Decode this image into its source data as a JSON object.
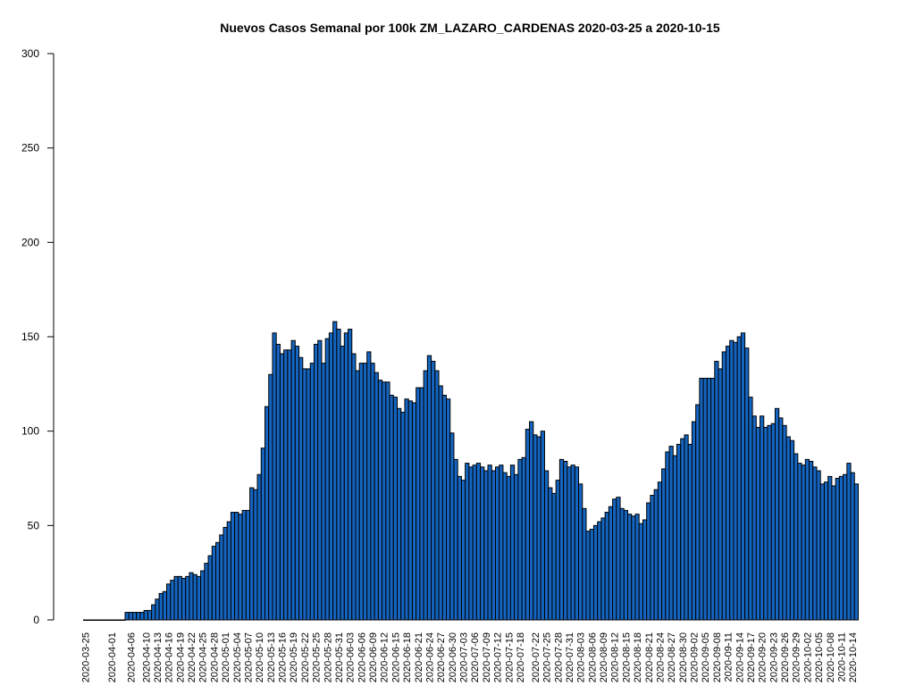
{
  "chart_data": {
    "type": "bar",
    "title": "Nuevos Casos Semanal por 100k ZM_LAZARO_CARDENAS 2020-03-25 a 2020-10-15",
    "xlabel": "",
    "ylabel": "",
    "ylim": [
      0,
      300
    ],
    "yticks": [
      0,
      50,
      100,
      150,
      200,
      250,
      300
    ],
    "grid": false,
    "bar_color": "#1565C0",
    "bar_edge_color": "#000000",
    "x_start": "2020-03-25",
    "x": [
      "2020-03-25",
      "2020-03-26",
      "2020-03-27",
      "2020-03-28",
      "2020-03-29",
      "2020-03-30",
      "2020-03-31",
      "2020-04-01",
      "2020-04-02",
      "2020-04-03",
      "2020-04-04",
      "2020-04-05",
      "2020-04-06",
      "2020-04-07",
      "2020-04-08",
      "2020-04-09",
      "2020-04-10",
      "2020-04-11",
      "2020-04-12",
      "2020-04-13",
      "2020-04-14",
      "2020-04-15",
      "2020-04-16",
      "2020-04-17",
      "2020-04-18",
      "2020-04-19",
      "2020-04-20",
      "2020-04-21",
      "2020-04-22",
      "2020-04-23",
      "2020-04-24",
      "2020-04-25",
      "2020-04-26",
      "2020-04-27",
      "2020-04-28",
      "2020-04-29",
      "2020-04-30",
      "2020-05-01",
      "2020-05-02",
      "2020-05-03",
      "2020-05-04",
      "2020-05-05",
      "2020-05-06",
      "2020-05-07",
      "2020-05-08",
      "2020-05-09",
      "2020-05-10",
      "2020-05-11",
      "2020-05-12",
      "2020-05-13",
      "2020-05-14",
      "2020-05-15",
      "2020-05-16",
      "2020-05-17",
      "2020-05-18",
      "2020-05-19",
      "2020-05-20",
      "2020-05-21",
      "2020-05-22",
      "2020-05-23",
      "2020-05-24",
      "2020-05-25",
      "2020-05-26",
      "2020-05-27",
      "2020-05-28",
      "2020-05-29",
      "2020-05-30",
      "2020-05-31",
      "2020-06-01",
      "2020-06-02",
      "2020-06-03",
      "2020-06-04",
      "2020-06-05",
      "2020-06-06",
      "2020-06-07",
      "2020-06-08",
      "2020-06-09",
      "2020-06-10",
      "2020-06-11",
      "2020-06-12",
      "2020-06-13",
      "2020-06-14",
      "2020-06-15",
      "2020-06-16",
      "2020-06-17",
      "2020-06-18",
      "2020-06-19",
      "2020-06-20",
      "2020-06-21",
      "2020-06-22",
      "2020-06-23",
      "2020-06-24",
      "2020-06-25",
      "2020-06-26",
      "2020-06-27",
      "2020-06-28",
      "2020-06-29",
      "2020-06-30",
      "2020-07-01",
      "2020-07-02",
      "2020-07-03",
      "2020-07-04",
      "2020-07-05",
      "2020-07-06",
      "2020-07-07",
      "2020-07-08",
      "2020-07-09",
      "2020-07-10",
      "2020-07-11",
      "2020-07-12",
      "2020-07-13",
      "2020-07-14",
      "2020-07-15",
      "2020-07-16",
      "2020-07-17",
      "2020-07-18",
      "2020-07-19",
      "2020-07-20",
      "2020-07-21",
      "2020-07-22",
      "2020-07-23",
      "2020-07-24",
      "2020-07-25",
      "2020-07-26",
      "2020-07-27",
      "2020-07-28",
      "2020-07-29",
      "2020-07-30",
      "2020-07-31",
      "2020-08-01",
      "2020-08-02",
      "2020-08-03",
      "2020-08-04",
      "2020-08-05",
      "2020-08-06",
      "2020-08-07",
      "2020-08-08",
      "2020-08-09",
      "2020-08-10",
      "2020-08-11",
      "2020-08-12",
      "2020-08-13",
      "2020-08-14",
      "2020-08-15",
      "2020-08-16",
      "2020-08-17",
      "2020-08-18",
      "2020-08-19",
      "2020-08-20",
      "2020-08-21",
      "2020-08-22",
      "2020-08-23",
      "2020-08-24",
      "2020-08-25",
      "2020-08-26",
      "2020-08-27",
      "2020-08-28",
      "2020-08-29",
      "2020-08-30",
      "2020-08-31",
      "2020-09-01",
      "2020-09-02",
      "2020-09-03",
      "2020-09-04",
      "2020-09-05",
      "2020-09-06",
      "2020-09-07",
      "2020-09-08",
      "2020-09-09",
      "2020-09-10",
      "2020-09-11",
      "2020-09-12",
      "2020-09-13",
      "2020-09-14",
      "2020-09-15",
      "2020-09-16",
      "2020-09-17",
      "2020-09-18",
      "2020-09-19",
      "2020-09-20",
      "2020-09-21",
      "2020-09-22",
      "2020-09-23",
      "2020-09-24",
      "2020-09-25",
      "2020-09-26",
      "2020-09-27",
      "2020-09-28",
      "2020-09-29",
      "2020-09-30",
      "2020-10-01",
      "2020-10-02",
      "2020-10-03",
      "2020-10-04",
      "2020-10-05",
      "2020-10-06",
      "2020-10-07",
      "2020-10-08",
      "2020-10-09",
      "2020-10-10",
      "2020-10-11",
      "2020-10-12",
      "2020-10-13",
      "2020-10-14",
      "2020-10-15"
    ],
    "x_tick_labels": [
      "2020-03-25",
      "2020-04-01",
      "2020-04-06",
      "2020-04-10",
      "2020-04-13",
      "2020-04-16",
      "2020-04-19",
      "2020-04-22",
      "2020-04-25",
      "2020-04-28",
      "2020-05-01",
      "2020-05-04",
      "2020-05-07",
      "2020-05-10",
      "2020-05-13",
      "2020-05-16",
      "2020-05-19",
      "2020-05-22",
      "2020-05-25",
      "2020-05-28",
      "2020-05-31",
      "2020-06-03",
      "2020-06-06",
      "2020-06-09",
      "2020-06-12",
      "2020-06-15",
      "2020-06-18",
      "2020-06-21",
      "2020-06-24",
      "2020-06-27",
      "2020-06-30",
      "2020-07-03",
      "2020-07-06",
      "2020-07-09",
      "2020-07-12",
      "2020-07-15",
      "2020-07-18",
      "2020-07-22",
      "2020-07-25",
      "2020-07-28",
      "2020-07-31",
      "2020-08-03",
      "2020-08-06",
      "2020-08-09",
      "2020-08-12",
      "2020-08-15",
      "2020-08-18",
      "2020-08-21",
      "2020-08-24",
      "2020-08-27",
      "2020-08-30",
      "2020-09-02",
      "2020-09-05",
      "2020-09-08",
      "2020-09-11",
      "2020-09-14",
      "2020-09-17",
      "2020-09-20",
      "2020-09-23",
      "2020-09-26",
      "2020-09-29",
      "2020-10-02",
      "2020-10-05",
      "2020-10-08",
      "2020-10-11",
      "2020-10-14"
    ],
    "values": [
      0,
      0,
      0,
      0,
      0,
      0,
      0,
      0,
      0,
      0,
      0,
      4,
      4,
      4,
      4,
      4,
      5,
      5,
      8,
      11,
      14,
      15,
      19,
      21,
      23,
      23,
      22,
      23,
      25,
      24,
      23,
      26,
      30,
      34,
      39,
      41,
      45,
      49,
      52,
      57,
      57,
      56,
      58,
      58,
      70,
      69,
      77,
      91,
      113,
      130,
      152,
      146,
      141,
      143,
      143,
      148,
      145,
      139,
      133,
      133,
      136,
      146,
      148,
      136,
      149,
      152,
      158,
      154,
      145,
      152,
      154,
      141,
      132,
      136,
      136,
      142,
      136,
      131,
      127,
      126,
      126,
      119,
      118,
      112,
      110,
      117,
      116,
      115,
      123,
      123,
      132,
      140,
      137,
      132,
      124,
      119,
      117,
      99,
      85,
      76,
      74,
      83,
      81,
      82,
      83,
      81,
      79,
      82,
      79,
      81,
      82,
      78,
      76,
      82,
      77,
      85,
      86,
      101,
      105,
      98,
      97,
      100,
      79,
      70,
      67,
      74,
      85,
      84,
      81,
      82,
      81,
      72,
      59,
      47,
      48,
      50,
      52,
      54,
      57,
      60,
      64,
      65,
      59,
      58,
      56,
      55,
      56,
      51,
      53,
      62,
      66,
      69,
      73,
      80,
      89,
      92,
      87,
      93,
      96,
      98,
      93,
      105,
      114,
      128,
      128,
      128,
      128,
      137,
      133,
      142,
      145,
      148,
      147,
      150,
      152,
      144,
      118,
      108,
      102,
      108,
      102,
      103,
      104,
      112,
      107,
      103,
      97,
      95,
      88,
      83,
      82,
      85,
      84,
      81,
      79,
      72,
      73,
      76,
      71,
      75,
      76,
      77,
      83,
      78,
      72
    ]
  }
}
